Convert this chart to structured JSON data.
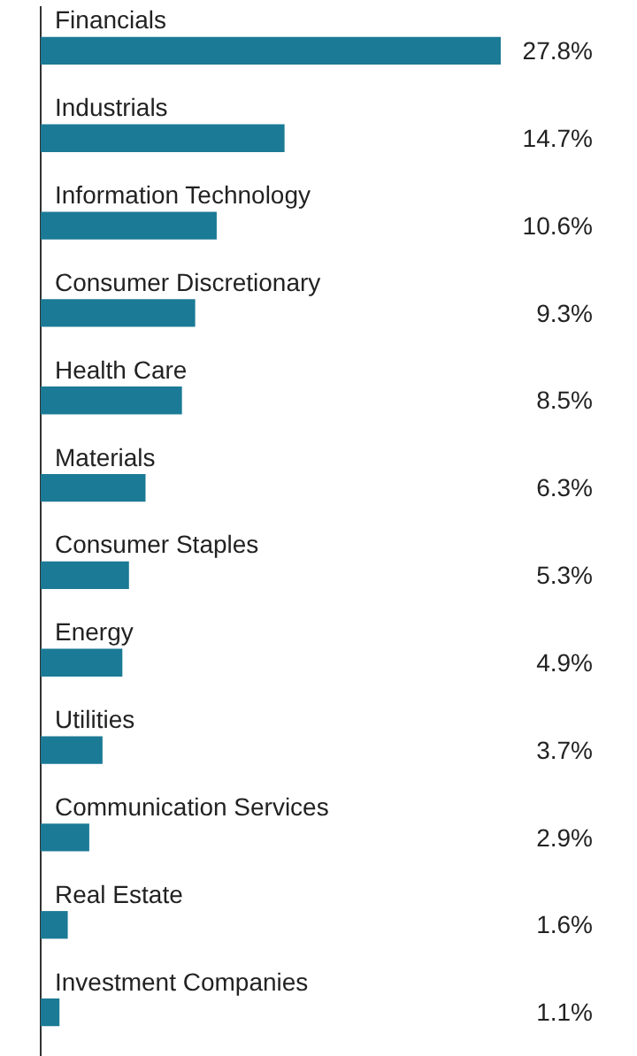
{
  "chart_data": {
    "type": "bar",
    "orientation": "horizontal",
    "categories": [
      "Financials",
      "Industrials",
      "Information Technology",
      "Consumer Discretionary",
      "Health Care",
      "Materials",
      "Consumer Staples",
      "Energy",
      "Utilities",
      "Communication Services",
      "Real Estate",
      "Investment Companies"
    ],
    "values": [
      27.8,
      14.7,
      10.6,
      9.3,
      8.5,
      6.3,
      5.3,
      4.9,
      3.7,
      2.9,
      1.6,
      1.1
    ],
    "value_labels": [
      "27.8%",
      "14.7%",
      "10.6%",
      "9.3%",
      "8.5%",
      "6.3%",
      "5.3%",
      "4.9%",
      "3.7%",
      "2.9%",
      "1.6%",
      "1.1%"
    ],
    "color": "#1b7a95",
    "grid": false,
    "legend": false
  }
}
